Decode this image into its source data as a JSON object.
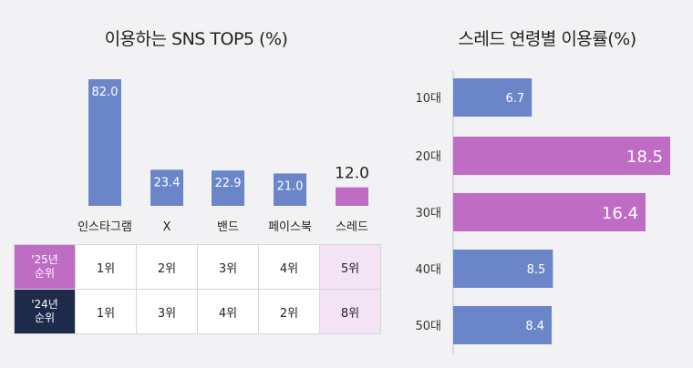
{
  "left_chart": {
    "title": "이용하는 SNS TOP5 (%)"
  },
  "right_chart": {
    "title": "스레드 연령별 이용률(%)"
  },
  "rank_table": {
    "rows": [
      {
        "label_line1": "'25년",
        "label_line2": "순위",
        "ranks": [
          "1위",
          "2위",
          "3위",
          "4위",
          "5위"
        ]
      },
      {
        "label_line1": "'24년",
        "label_line2": "순위",
        "ranks": [
          "1위",
          "3위",
          "4위",
          "2위",
          "8위"
        ]
      }
    ]
  },
  "colors": {
    "blue": "#6a86c9",
    "purple": "#bf6cc4",
    "navy": "#1e2a4a",
    "highlight": "#f4e3f4"
  },
  "chart_data": [
    {
      "type": "bar",
      "title": "이용하는 SNS TOP5 (%)",
      "categories": [
        "인스타그램",
        "X",
        "밴드",
        "페이스북",
        "스레드"
      ],
      "values": [
        82.0,
        23.4,
        22.9,
        21.0,
        12.0
      ],
      "value_labels": [
        "82.0",
        "23.4",
        "22.9",
        "21.0",
        "12.0"
      ],
      "highlight_index": 4,
      "ylim": [
        0,
        82
      ]
    },
    {
      "type": "bar",
      "orientation": "horizontal",
      "title": "스레드 연령별 이용률(%)",
      "categories": [
        "10대",
        "20대",
        "30대",
        "40대",
        "50대"
      ],
      "values": [
        6.7,
        18.5,
        16.4,
        8.5,
        8.4
      ],
      "value_labels": [
        "6.7",
        "18.5",
        "16.4",
        "8.5",
        "8.4"
      ],
      "highlight_indices": [
        1,
        2
      ],
      "xlim": [
        0,
        18.5
      ]
    }
  ]
}
